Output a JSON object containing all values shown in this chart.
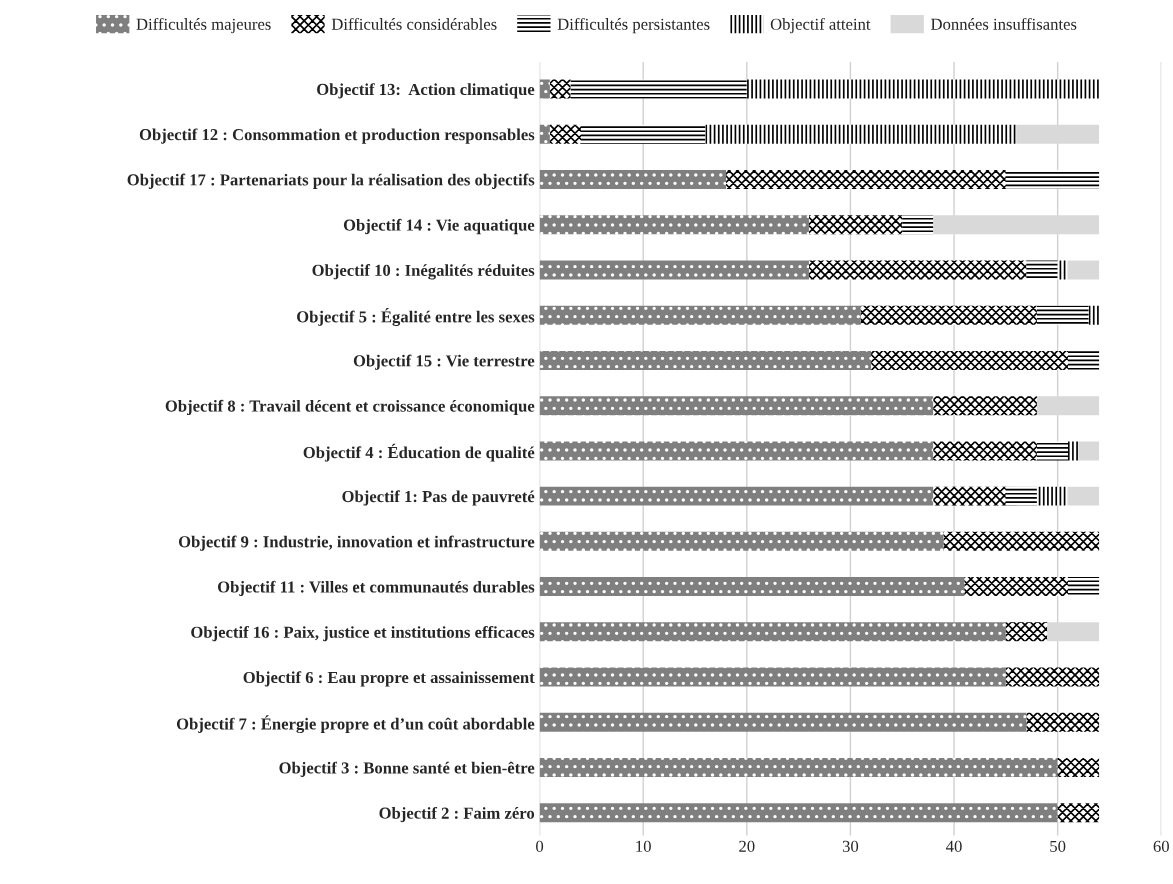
{
  "chart_data": {
    "type": "bar",
    "orientation": "horizontal",
    "stacked": true,
    "categories": [
      "Objectif 13:  Action climatique",
      "Objectif 12 : Consommation et production responsables",
      "Objectif 17 : Partenariats pour la réalisation des objectifs",
      "Objectif 14 : Vie aquatique",
      "Objectif 10 : Inégalités réduites",
      "Objectif 5 : Égalité entre les sexes",
      "Objectif 15 : Vie terrestre",
      "Objectif 8 : Travail décent et croissance économique",
      "Objectif 4 : Éducation de qualité",
      "Objectif 1: Pas de pauvreté",
      "Objectif 9 : Industrie, innovation et infrastructure",
      "Objectif 11 : Villes et communautés durables",
      "Objectif 16 : Paix, justice et institutions efficaces",
      "Objectif 6 : Eau propre et assainissement",
      "Objectif 7 : Énergie propre et d’un coût abordable",
      "Objectif 3 : Bonne santé et bien-être",
      "Objectif 2 : Faim zéro"
    ],
    "series": [
      {
        "name": "Difficultés majeures",
        "color": "#7f7f7f",
        "values": [
          1,
          1,
          18,
          26,
          26,
          31,
          32,
          38,
          38,
          38,
          39,
          41,
          45,
          45,
          47,
          50,
          50
        ]
      },
      {
        "name": "Difficultés considérables",
        "color": "#ffffff",
        "values": [
          2,
          3,
          27,
          9,
          21,
          17,
          19,
          10,
          10,
          7,
          15,
          10,
          4,
          9,
          7,
          4,
          4
        ]
      },
      {
        "name": "Difficultés persistantes",
        "color": "#ffffff",
        "values": [
          17,
          12,
          9,
          3,
          3,
          5,
          3,
          0,
          3,
          3,
          0,
          3,
          0,
          0,
          0,
          0,
          0
        ]
      },
      {
        "name": "Objectif atteint",
        "color": "#ffffff",
        "values": [
          34,
          30,
          0,
          0,
          1,
          1,
          0,
          0,
          1,
          3,
          0,
          0,
          0,
          0,
          0,
          0,
          0
        ]
      },
      {
        "name": "Données insuffisantes",
        "color": "#d9d9d9",
        "values": [
          0,
          8,
          0,
          16,
          3,
          0,
          0,
          6,
          2,
          3,
          0,
          0,
          5,
          0,
          0,
          0,
          0
        ]
      }
    ],
    "xlim": [
      0,
      60
    ],
    "xticks": [
      0,
      10,
      20,
      30,
      40,
      50,
      60
    ],
    "grid": "x",
    "legend": "top"
  }
}
